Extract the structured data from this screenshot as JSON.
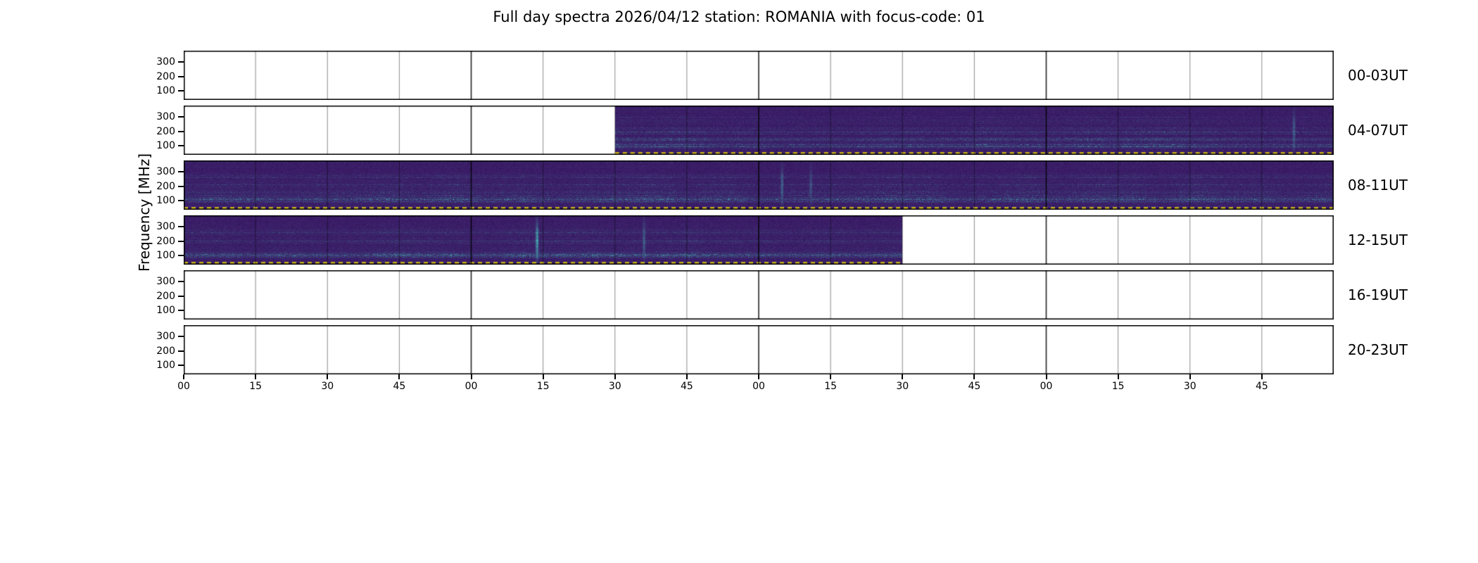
{
  "chart_data": {
    "type": "heatmap",
    "subtype": "radio-spectrogram",
    "title": "Full day spectra 2026/04/12 station: ROMANIA with focus-code: 01",
    "ylabel": "Frequency [MHz]",
    "y_ticks": [
      "300",
      "200",
      "100"
    ],
    "x_tick_labels": [
      "00",
      "15",
      "30",
      "45",
      "00",
      "15",
      "30",
      "45",
      "00",
      "15",
      "30",
      "45",
      "00",
      "15",
      "30",
      "45"
    ],
    "row_duration_hours": 4,
    "tick_interval_minutes": 15,
    "grid": "vertical ticks every 15 minutes, heavier each hour",
    "legend": "none",
    "rows": [
      {
        "label": "00-03UT",
        "has_data": false,
        "data_start_frac": null,
        "data_end_frac": null,
        "features": []
      },
      {
        "label": "04-07UT",
        "has_data": true,
        "data_start_frac": 0.375,
        "data_end_frac": 1.0,
        "features": [
          {
            "x_frac": 0.965,
            "strength": 0.45
          }
        ]
      },
      {
        "label": "08-11UT",
        "has_data": true,
        "data_start_frac": 0.0,
        "data_end_frac": 1.0,
        "features": [
          {
            "x_frac": 0.52,
            "strength": 0.5
          },
          {
            "x_frac": 0.545,
            "strength": 0.35
          }
        ]
      },
      {
        "label": "12-15UT",
        "has_data": true,
        "data_start_frac": 0.0,
        "data_end_frac": 0.625,
        "features": [
          {
            "x_frac": 0.307,
            "strength": 0.95
          },
          {
            "x_frac": 0.4,
            "strength": 0.5
          }
        ]
      },
      {
        "label": "16-19UT",
        "has_data": false,
        "data_start_frac": null,
        "data_end_frac": null,
        "features": []
      },
      {
        "label": "20-23UT",
        "has_data": false,
        "data_start_frac": null,
        "data_end_frac": null,
        "features": []
      }
    ],
    "colors": {
      "spectrum_base": "#341a60",
      "spectrum_streak": "#48d6c6",
      "data_edge_marker": "#ddc414",
      "axis": "#000000",
      "background": "#ffffff"
    }
  }
}
